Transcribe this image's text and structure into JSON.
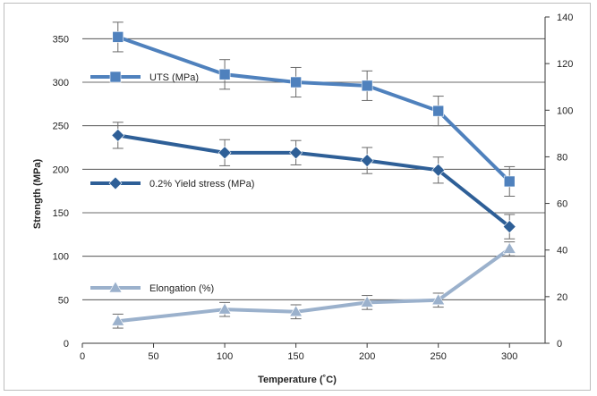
{
  "chart_data": {
    "type": "line",
    "x": [
      25,
      100,
      150,
      200,
      250,
      300
    ],
    "xlabel": "Temperature (˚C)",
    "ylabel": "Strength (MPa)",
    "xlim": [
      0,
      325
    ],
    "ylim": [
      0,
      375
    ],
    "y2lim": [
      0,
      140
    ],
    "x_ticks": [
      "0",
      "50",
      "100",
      "150",
      "200",
      "250",
      "300"
    ],
    "y_ticks": [
      "0",
      "50",
      "100",
      "150",
      "200",
      "250",
      "300",
      "350"
    ],
    "y2_ticks": [
      "0",
      "20",
      "40",
      "60",
      "80",
      "100",
      "120",
      "140"
    ],
    "grid": "horizontal",
    "legend_placement": "inline-left",
    "series": [
      {
        "name": "UTS (MPa)",
        "axis": "left",
        "marker": "square",
        "color": "#4f81bd",
        "values": [
          352,
          309,
          300,
          296,
          267,
          186
        ],
        "errors": [
          17,
          17,
          17,
          17,
          17,
          17
        ]
      },
      {
        "name": "0.2% Yield stress (MPa)",
        "axis": "left",
        "marker": "diamond",
        "color": "#2e5f97",
        "values": [
          239,
          219,
          219,
          210,
          199,
          134
        ],
        "errors": [
          15,
          15,
          14,
          15,
          15,
          14
        ]
      },
      {
        "name": "Elongation (%)",
        "axis": "right",
        "marker": "triangle",
        "color": "#9bb1cc",
        "values": [
          9.5,
          14.5,
          13.5,
          17.5,
          18.5,
          40.5
        ],
        "errors": [
          3,
          3,
          3,
          3,
          3,
          3
        ]
      }
    ]
  }
}
